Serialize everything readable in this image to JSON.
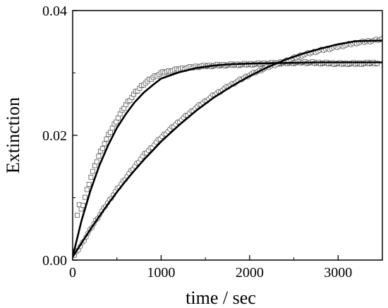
{
  "chart_data": {
    "type": "scatter",
    "title": "",
    "xlabel": "time / sec",
    "ylabel": "Extinction",
    "xlim": [
      0,
      3500
    ],
    "ylim": [
      0,
      0.04
    ],
    "x_ticks": [
      {
        "value": 0,
        "label": "0"
      },
      {
        "value": 1000,
        "label": "1000"
      },
      {
        "value": 2000,
        "label": "2000"
      },
      {
        "value": 3000,
        "label": "3000"
      }
    ],
    "y_ticks": [
      {
        "value": 0,
        "label": "0.00"
      },
      {
        "value": 0.02,
        "label": "0.02"
      },
      {
        "value": 0.04,
        "label": "0.04"
      }
    ],
    "grid": false,
    "legend": "none",
    "series": [
      {
        "marker": "square",
        "sample_points": [
          [
            30,
            0.0016
          ],
          [
            60,
            0.0093
          ],
          [
            100,
            0.0079
          ],
          [
            150,
            0.0106
          ],
          [
            200,
            0.0131
          ],
          [
            300,
            0.0169
          ],
          [
            400,
            0.0199
          ],
          [
            500,
            0.0225
          ],
          [
            600,
            0.0249
          ],
          [
            700,
            0.0267
          ],
          [
            800,
            0.0282
          ],
          [
            900,
            0.0292
          ],
          [
            1000,
            0.03
          ],
          [
            1200,
            0.0306
          ],
          [
            1400,
            0.031
          ],
          [
            1600,
            0.0312
          ],
          [
            1800,
            0.0313
          ],
          [
            2000,
            0.0314
          ],
          [
            2200,
            0.0315
          ],
          [
            2400,
            0.0316
          ],
          [
            2600,
            0.0317
          ],
          [
            2800,
            0.0316
          ],
          [
            3000,
            0.0315
          ],
          [
            3200,
            0.0315
          ],
          [
            3400,
            0.0316
          ]
        ],
        "fit_curve": [
          [
            0,
            0.0005
          ],
          [
            100,
            0.0063
          ],
          [
            200,
            0.0111
          ],
          [
            300,
            0.0151
          ],
          [
            400,
            0.0184
          ],
          [
            500,
            0.0212
          ],
          [
            600,
            0.0234
          ],
          [
            700,
            0.0253
          ],
          [
            800,
            0.0268
          ],
          [
            900,
            0.028
          ],
          [
            1000,
            0.0291
          ],
          [
            1200,
            0.0301
          ],
          [
            1400,
            0.0308
          ],
          [
            1600,
            0.0312
          ],
          [
            1800,
            0.0314
          ],
          [
            2000,
            0.0315
          ],
          [
            2400,
            0.0316
          ],
          [
            2800,
            0.0317
          ],
          [
            3200,
            0.0317
          ],
          [
            3500,
            0.0317
          ]
        ]
      },
      {
        "marker": "circle",
        "sample_points": [
          [
            20,
            0.0007
          ],
          [
            100,
            0.0025
          ],
          [
            200,
            0.0049
          ],
          [
            300,
            0.0072
          ],
          [
            400,
            0.0093
          ],
          [
            500,
            0.0113
          ],
          [
            600,
            0.0132
          ],
          [
            700,
            0.015
          ],
          [
            800,
            0.0168
          ],
          [
            900,
            0.0182
          ],
          [
            1000,
            0.0197
          ],
          [
            1200,
            0.0222
          ],
          [
            1400,
            0.0245
          ],
          [
            1600,
            0.0265
          ],
          [
            1800,
            0.0282
          ],
          [
            2000,
            0.0297
          ],
          [
            2200,
            0.0309
          ],
          [
            2400,
            0.0319
          ],
          [
            2600,
            0.0329
          ],
          [
            2800,
            0.0336
          ],
          [
            3000,
            0.0342
          ],
          [
            3200,
            0.0348
          ],
          [
            3400,
            0.0352
          ],
          [
            3500,
            0.0354
          ]
        ],
        "fit_curve": [
          [
            0,
            0.0005
          ],
          [
            100,
            0.0027
          ],
          [
            200,
            0.0049
          ],
          [
            300,
            0.007
          ],
          [
            400,
            0.009
          ],
          [
            500,
            0.0109
          ],
          [
            600,
            0.0127
          ],
          [
            700,
            0.0144
          ],
          [
            800,
            0.016
          ],
          [
            900,
            0.0175
          ],
          [
            1000,
            0.019
          ],
          [
            1200,
            0.0216
          ],
          [
            1400,
            0.024
          ],
          [
            1600,
            0.0261
          ],
          [
            1800,
            0.0279
          ],
          [
            2000,
            0.0295
          ],
          [
            2200,
            0.0309
          ],
          [
            2400,
            0.0321
          ],
          [
            2600,
            0.0331
          ],
          [
            2800,
            0.0339
          ],
          [
            3000,
            0.0346
          ],
          [
            3200,
            0.0351
          ],
          [
            3500,
            0.0352
          ]
        ]
      }
    ]
  }
}
